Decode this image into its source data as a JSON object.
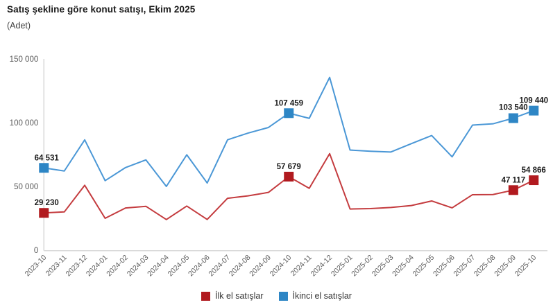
{
  "header": {
    "title": "Satış şekline göre konut satışı, Ekim 2025",
    "subtitle": "(Adet)"
  },
  "legend": [
    {
      "label": "İlk el satışlar",
      "color": "#b11a1f"
    },
    {
      "label": "İkinci el satışlar",
      "color": "#2e86c5"
    }
  ],
  "colors": {
    "axis_line": "#d9d9d9",
    "tick_text": "#595959",
    "data_label_text": "#1a1a1a"
  },
  "chart_data": {
    "type": "line",
    "title": "Satış şekline göre konut satışı, Ekim 2025",
    "subtitle": "(Adet)",
    "xlabel": "",
    "ylabel": "",
    "ylim": [
      0,
      150000
    ],
    "yticks": [
      0,
      50000,
      100000,
      150000
    ],
    "ytick_labels": [
      "0",
      "50 000",
      "100 000",
      "150 000"
    ],
    "grid": false,
    "legend_position": "bottom",
    "x": [
      "2023-10",
      "2023-11",
      "2023-12",
      "2024-01",
      "2024-02",
      "2024-03",
      "2024-04",
      "2024-05",
      "2024-06",
      "2024-07",
      "2024-08",
      "2024-09",
      "2024-10",
      "2024-11",
      "2024-12",
      "2025-01",
      "2025-02",
      "2025-03",
      "2025-04",
      "2025-05",
      "2025-06",
      "2025-07",
      "2025-08",
      "2025-09",
      "2025-10"
    ],
    "series": [
      {
        "name": "İlk el satışlar",
        "marker_color": "#b11a1f",
        "line_color": "#c43b3e",
        "values": [
          29230,
          30000,
          50900,
          25000,
          33100,
          34400,
          24000,
          34600,
          24100,
          40700,
          42600,
          45300,
          57679,
          48500,
          75700,
          32300,
          32600,
          33500,
          35000,
          38600,
          33200,
          43500,
          43600,
          47117,
          54866
        ],
        "labeled_points": [
          {
            "index": 0,
            "label": "29 230",
            "dx": 4,
            "dy": -11
          },
          {
            "index": 12,
            "label": "57 679",
            "dx": 0,
            "dy": -11
          },
          {
            "index": 23,
            "label": "47 117",
            "dx": 0,
            "dy": -11
          },
          {
            "index": 24,
            "label": "54 866",
            "dx": 0,
            "dy": -11
          }
        ]
      },
      {
        "name": "İkinci el satışlar",
        "marker_color": "#2e86c5",
        "line_color": "#4a97d6",
        "values": [
          64531,
          62100,
          86500,
          54500,
          64800,
          70800,
          50000,
          74800,
          52700,
          86600,
          91800,
          96200,
          107459,
          103400,
          135500,
          78500,
          77600,
          77000,
          83500,
          89900,
          73200,
          98100,
          99100,
          103540,
          109440
        ],
        "labeled_points": [
          {
            "index": 0,
            "label": "64 531",
            "dx": 4,
            "dy": -11
          },
          {
            "index": 12,
            "label": "107 459",
            "dx": 0,
            "dy": -11
          },
          {
            "index": 23,
            "label": "103 540",
            "dx": 0,
            "dy": -12
          },
          {
            "index": 24,
            "label": "109 440",
            "dx": 0,
            "dy": -11
          }
        ]
      }
    ]
  }
}
